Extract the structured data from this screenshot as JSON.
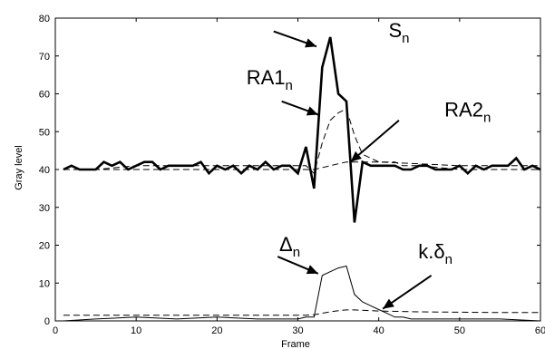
{
  "chart_data": {
    "type": "line",
    "xlabel": "Frame",
    "ylabel": "Gray level",
    "xlim": [
      0,
      60
    ],
    "ylim": [
      0,
      80
    ],
    "x_ticks": [
      "0",
      "10",
      "20",
      "30",
      "40",
      "50",
      "60"
    ],
    "y_ticks": [
      "0",
      "10",
      "20",
      "30",
      "40",
      "50",
      "60",
      "70",
      "80"
    ],
    "grid": false,
    "legend": "none",
    "series": [
      {
        "key": "s",
        "style": "thick-solid",
        "x": [
          1,
          2,
          3,
          4,
          5,
          6,
          7,
          8,
          9,
          10,
          11,
          12,
          13,
          14,
          15,
          16,
          17,
          18,
          19,
          20,
          21,
          22,
          23,
          24,
          25,
          26,
          27,
          28,
          29,
          30,
          31,
          32,
          33,
          34,
          35,
          36,
          37,
          38,
          39,
          40,
          41,
          42,
          43,
          44,
          45,
          46,
          47,
          48,
          49,
          50,
          51,
          52,
          53,
          54,
          55,
          56,
          57,
          58,
          59,
          60
        ],
        "values": [
          40,
          41,
          40,
          40,
          40,
          42,
          41,
          42,
          40,
          41,
          42,
          42,
          40,
          41,
          41,
          41,
          41,
          42,
          39,
          41,
          40,
          41,
          39,
          41,
          40,
          42,
          40,
          41,
          41,
          39,
          46,
          35,
          67,
          75,
          60,
          58,
          26,
          42,
          41,
          41,
          41,
          41,
          40,
          40,
          41,
          41,
          40,
          40,
          40,
          41,
          39,
          41,
          40,
          41,
          41,
          41,
          43,
          40,
          41,
          40
        ]
      },
      {
        "key": "ra1",
        "style": "dashed",
        "x": [
          1,
          5,
          10,
          15,
          20,
          25,
          28,
          30,
          31,
          32,
          33,
          34,
          35,
          36,
          37,
          38,
          39,
          40,
          41,
          42,
          43,
          44,
          45,
          50,
          55,
          60
        ],
        "values": [
          40,
          40,
          41,
          41,
          41,
          41,
          41,
          41,
          41,
          39,
          47,
          53,
          55,
          56,
          49,
          44,
          43,
          42,
          42,
          42,
          41,
          41,
          41,
          40,
          40,
          40
        ]
      },
      {
        "key": "ra2",
        "style": "dashed",
        "x": [
          1,
          10,
          20,
          30,
          31,
          32,
          33,
          34,
          35,
          36,
          37,
          38,
          39,
          40,
          45,
          50,
          55,
          60
        ],
        "values": [
          40,
          40,
          40,
          40,
          40,
          40,
          40.5,
          41,
          41.5,
          42,
          42,
          42,
          42,
          42,
          41.5,
          41,
          41,
          41
        ]
      },
      {
        "key": "delta",
        "style": "thin-solid",
        "x": [
          1,
          5,
          10,
          15,
          20,
          25,
          29,
          30,
          31,
          32,
          33,
          34,
          35,
          36,
          37,
          38,
          39,
          40,
          41,
          42,
          43,
          44,
          45,
          50,
          55,
          60
        ],
        "values": [
          0,
          0.5,
          1,
          0.5,
          1,
          0.5,
          0.5,
          0.5,
          1,
          1,
          12,
          13,
          14,
          14.5,
          7,
          5,
          4,
          3,
          2,
          1,
          1,
          0.5,
          0.5,
          0.5,
          0.5,
          0
        ]
      },
      {
        "key": "kdelta",
        "style": "dashed",
        "x": [
          1,
          10,
          20,
          30,
          31,
          32,
          33,
          34,
          35,
          36,
          37,
          38,
          40,
          45,
          50,
          55,
          60
        ],
        "values": [
          1.5,
          1.5,
          1.5,
          1.5,
          1.5,
          1.6,
          2,
          2.4,
          2.7,
          2.9,
          2.9,
          2.8,
          2.6,
          2.4,
          2.3,
          2.2,
          2.2
        ]
      }
    ],
    "annotations": [
      {
        "key": "s",
        "symbol": "S",
        "subscript": "n",
        "text_x": 42.5,
        "text_y": 75,
        "arrow_from": [
          27,
          76.5
        ],
        "arrow_to": [
          32.3,
          72.5
        ]
      },
      {
        "key": "ra1",
        "symbol": "RA1",
        "subscript": "n",
        "text_x": 26.5,
        "text_y": 62.5,
        "arrow_from": [
          28,
          58
        ],
        "arrow_to": [
          32.5,
          54.5
        ]
      },
      {
        "key": "ra2",
        "symbol": "RA2",
        "subscript": "n",
        "text_x": 51,
        "text_y": 54,
        "arrow_from": [
          42.5,
          53
        ],
        "arrow_to": [
          36.5,
          42
        ]
      },
      {
        "key": "delta",
        "symbol": "Δ",
        "subscript": "n",
        "text_x": 29,
        "text_y": 18.5,
        "arrow_from": [
          27.5,
          17
        ],
        "arrow_to": [
          32.5,
          12.5
        ]
      },
      {
        "key": "kdelta",
        "symbol": "k.δ",
        "subscript": "n",
        "text_x": 47,
        "text_y": 16.5,
        "arrow_from": [
          46.5,
          12
        ],
        "arrow_to": [
          40.5,
          3.2
        ]
      }
    ]
  }
}
